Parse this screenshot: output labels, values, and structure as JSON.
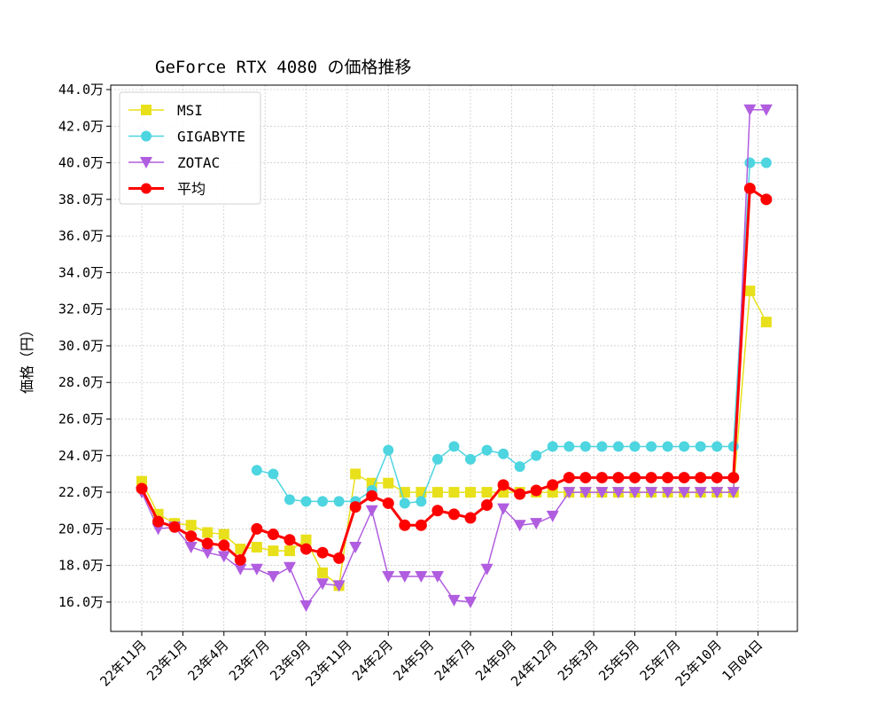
{
  "chart_data": {
    "type": "line",
    "title": "GeForce RTX 4080 の価格推移",
    "xlabel": "",
    "ylabel": "価格（円）",
    "ylim": [
      14.5,
      44.5
    ],
    "yticks": [
      "16.0万",
      "18.0万",
      "20.0万",
      "22.0万",
      "24.0万",
      "26.0万",
      "28.0万",
      "30.0万",
      "32.0万",
      "34.0万",
      "36.0万",
      "38.0万",
      "40.0万",
      "42.0万",
      "44.0万"
    ],
    "xticks": [
      "22年11月",
      "23年1月",
      "23年4月",
      "23年7月",
      "23年9月",
      "23年11月",
      "24年2月",
      "24年5月",
      "24年7月",
      "24年9月",
      "24年12月",
      "25年3月",
      "25年5月",
      "25年7月",
      "25年10月",
      "1月04日"
    ],
    "grid": true,
    "legend": "top-left",
    "series": [
      {
        "name": "MSI",
        "color": "#e8e01a",
        "marker": "square",
        "values": [
          22.6,
          20.8,
          20.3,
          20.2,
          19.8,
          19.7,
          18.9,
          19.0,
          18.8,
          18.8,
          19.4,
          17.6,
          16.9,
          23.0,
          22.5,
          22.5,
          22.0,
          22.0,
          22.0,
          22.0,
          22.0,
          22.0,
          22.0,
          22.0,
          22.0,
          22.0,
          22.0,
          22.0,
          22.0,
          22.0,
          22.0,
          22.0,
          22.0,
          22.0,
          22.0,
          22.0,
          22.0,
          33.0,
          31.3
        ]
      },
      {
        "name": "GIGABYTE",
        "color": "#4dd5e0",
        "marker": "circle",
        "values": [
          null,
          null,
          null,
          null,
          null,
          null,
          null,
          23.2,
          23.0,
          21.6,
          21.5,
          21.5,
          21.5,
          21.5,
          22.1,
          24.3,
          21.4,
          21.5,
          23.8,
          24.5,
          23.8,
          24.3,
          24.1,
          23.4,
          24.0,
          24.5,
          24.5,
          24.5,
          24.5,
          24.5,
          24.5,
          24.5,
          24.5,
          24.5,
          24.5,
          24.5,
          24.5,
          40.0,
          40.0
        ]
      },
      {
        "name": "ZOTAC",
        "color": "#b05de0",
        "marker": "triangle-down",
        "values": [
          22.0,
          20.0,
          20.1,
          19.0,
          18.7,
          18.5,
          17.8,
          17.8,
          17.4,
          17.9,
          15.8,
          17.0,
          16.9,
          19.0,
          21.0,
          17.4,
          17.4,
          17.4,
          17.4,
          16.1,
          16.0,
          17.8,
          21.1,
          20.2,
          20.3,
          20.7,
          22.0,
          22.0,
          22.0,
          22.0,
          22.0,
          22.0,
          22.0,
          22.0,
          22.0,
          22.0,
          22.0,
          42.9,
          42.9
        ]
      },
      {
        "name": "平均",
        "color": "#ff0000",
        "marker": "circle",
        "values": [
          22.2,
          20.4,
          20.1,
          19.6,
          19.2,
          19.1,
          18.3,
          20.0,
          19.7,
          19.4,
          18.9,
          18.7,
          18.4,
          21.2,
          21.8,
          21.4,
          20.2,
          20.2,
          21.0,
          20.8,
          20.6,
          21.3,
          22.4,
          21.9,
          22.1,
          22.4,
          22.8,
          22.8,
          22.8,
          22.8,
          22.8,
          22.8,
          22.8,
          22.8,
          22.8,
          22.8,
          22.8,
          38.6,
          38.0
        ]
      }
    ]
  }
}
